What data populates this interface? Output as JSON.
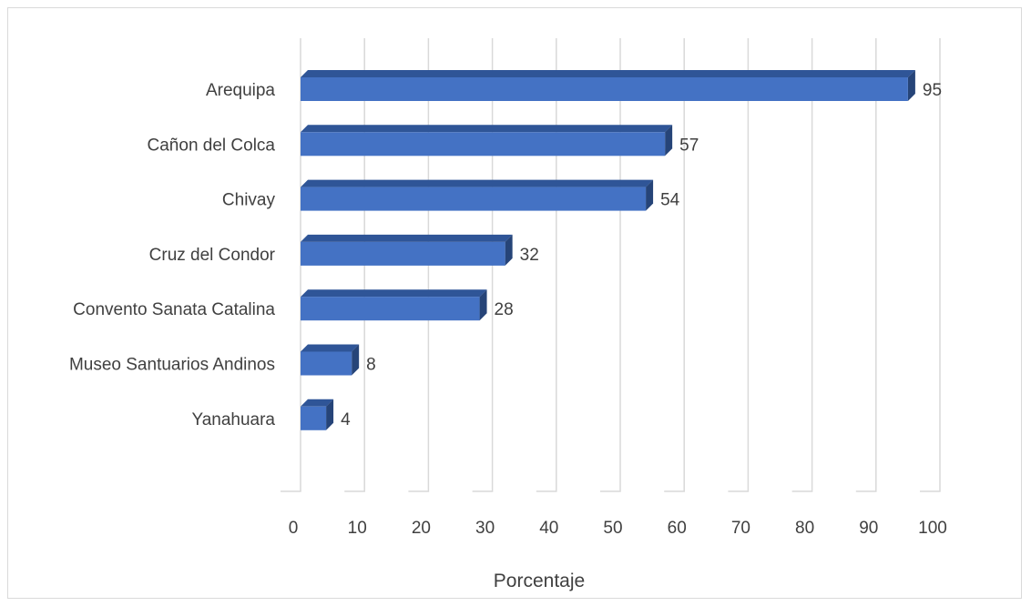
{
  "chart_data": {
    "type": "bar",
    "orientation": "horizontal",
    "style": "3d",
    "categories": [
      "Arequipa",
      "Cañon del Colca",
      "Chivay",
      "Cruz del Condor",
      "Convento Sanata Catalina",
      "Museo Santuarios Andinos",
      "Yanahuara"
    ],
    "values": [
      95,
      57,
      54,
      32,
      28,
      8,
      4
    ],
    "data_labels": [
      "95",
      "57",
      "54",
      "32",
      "28",
      "8",
      "4"
    ],
    "xlabel": "Porcentaje",
    "ylabel": "",
    "title": "",
    "xlim": [
      0,
      100
    ],
    "x_ticks": [
      "0",
      "10",
      "20",
      "30",
      "40",
      "50",
      "60",
      "70",
      "80",
      "90",
      "100"
    ],
    "grid": true,
    "legend": "none",
    "colors": {
      "bar_front": "#4472c4",
      "bar_top": "#2f5597",
      "bar_side": "#264478",
      "grid": "#d9d9d9",
      "text": "#404040"
    }
  }
}
